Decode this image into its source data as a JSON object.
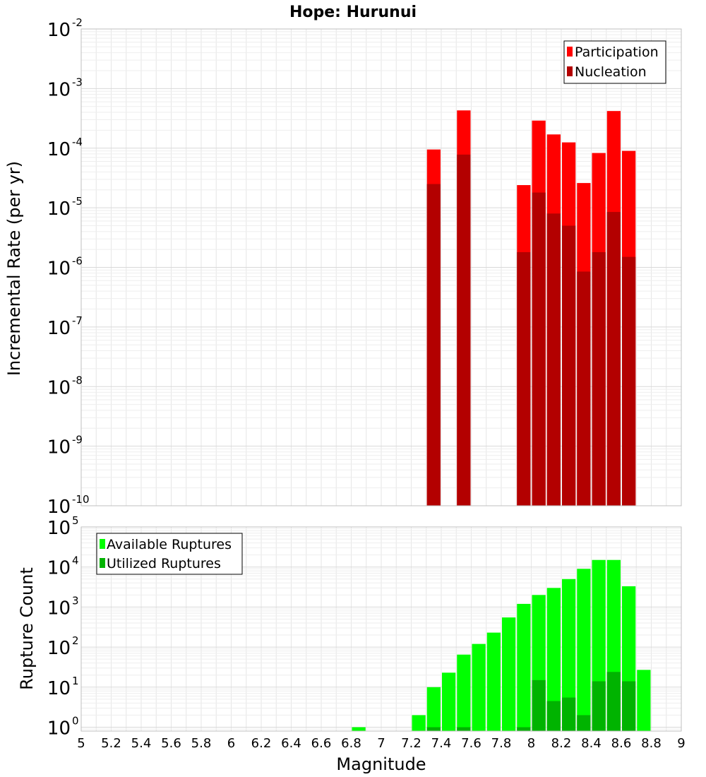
{
  "chart_data": [
    {
      "type": "bar",
      "title": "Hope: Hurunui",
      "xlabel": "",
      "ylabel": "Incremental Rate (per yr)",
      "yscale": "log",
      "ylim": [
        1e-10,
        0.01
      ],
      "xlim": [
        5,
        9
      ],
      "grid": true,
      "legend_position": "top-right",
      "colors": {
        "Participation": "#ff0000",
        "Nucleation": "#b30000"
      },
      "overlay": true,
      "x": [
        7.35,
        7.55,
        7.95,
        8.05,
        8.15,
        8.25,
        8.35,
        8.45,
        8.55,
        8.65
      ],
      "series": [
        {
          "name": "Participation",
          "values": [
            9.5e-05,
            0.00043,
            2.4e-05,
            0.00029,
            0.00017,
            0.000125,
            2.6e-05,
            8.3e-05,
            0.00042,
            9e-05
          ]
        },
        {
          "name": "Nucleation",
          "values": [
            2.5e-05,
            7.8e-05,
            1.8e-06,
            1.8e-05,
            8e-06,
            5e-06,
            8.5e-07,
            1.8e-06,
            8.5e-06,
            1.5e-06
          ]
        }
      ]
    },
    {
      "type": "bar",
      "title": "",
      "xlabel": "Magnitude",
      "ylabel": "Rupture Count",
      "yscale": "log",
      "ylim": [
        0.8,
        100000.0
      ],
      "xlim": [
        5,
        9
      ],
      "xticks": [
        "5",
        "5.2",
        "5.4",
        "5.6",
        "5.8",
        "6",
        "6.2",
        "6.4",
        "6.6",
        "6.8",
        "7",
        "7.2",
        "7.4",
        "7.6",
        "7.8",
        "8",
        "8.2",
        "8.4",
        "8.6",
        "8.8",
        "9"
      ],
      "grid": true,
      "legend_position": "top-left",
      "colors": {
        "Available Ruptures": "#00ff00",
        "Utilized Ruptures": "#00b300"
      },
      "overlay": true,
      "x": [
        6.85,
        7.25,
        7.35,
        7.45,
        7.55,
        7.65,
        7.75,
        7.85,
        7.95,
        8.05,
        8.15,
        8.25,
        8.35,
        8.45,
        8.55,
        8.65,
        8.75
      ],
      "series": [
        {
          "name": "Available Ruptures",
          "values": [
            1,
            2,
            10,
            23,
            65,
            120,
            230,
            550,
            1200,
            2000,
            3000,
            5000,
            9000,
            15000,
            15000,
            3300,
            27
          ]
        },
        {
          "name": "Utilized Ruptures",
          "values": [
            0,
            0,
            1,
            0,
            1,
            0,
            0,
            0,
            1,
            15,
            4.5,
            5.5,
            2,
            14,
            24,
            14,
            0
          ]
        }
      ]
    }
  ]
}
